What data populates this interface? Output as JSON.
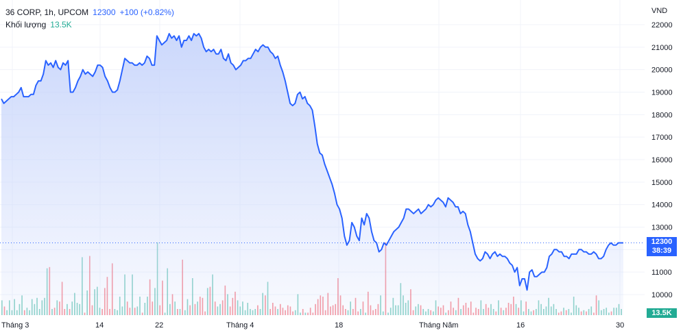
{
  "legend": {
    "symbol": "36 CORP, 1h, UPCOM",
    "last_price": "12300",
    "change": "+100 (+0.82%)",
    "volume_label": "Khối lượng",
    "volume_value": "13.5K"
  },
  "currency": "VND",
  "price_tag": {
    "price": "12300",
    "countdown": "38:39"
  },
  "volume_tag": "13.5K",
  "colors": {
    "line": "#2962ff",
    "area_top": "#c9d6fb",
    "volume_up": "#22ab94",
    "volume_down": "#f23645"
  },
  "chart_data": {
    "type": "area",
    "y_ticks": [
      "22000",
      "21000",
      "20000",
      "19000",
      "18000",
      "17000",
      "16000",
      "15000",
      "14000",
      "13000",
      "12000",
      "11000",
      "10000"
    ],
    "ylim": [
      9700,
      22400
    ],
    "x_ticks": [
      "Tháng 3",
      "14",
      "22",
      "Tháng 4",
      "18",
      "Tháng Năm",
      "16",
      "30"
    ],
    "last_value": 12300,
    "series": [
      {
        "values": [
          18700,
          18500,
          18600,
          18700,
          18800,
          18800,
          18900,
          19000,
          19200,
          18800,
          18800,
          18800,
          18900,
          18900,
          19300,
          19500,
          19500,
          19800,
          20400,
          20200,
          20300,
          20100,
          20400,
          20100,
          20000,
          20300,
          20200,
          20400,
          19000,
          19000,
          19200,
          19500,
          19700,
          20000,
          19800,
          19900,
          19800,
          19700,
          19900,
          20200,
          20200,
          20100,
          19700,
          19500,
          19200,
          19000,
          19000,
          19100,
          19500,
          20000,
          20500,
          20400,
          20300,
          20300,
          20200,
          20200,
          20300,
          20200,
          20300,
          20600,
          20500,
          20200,
          20200,
          21500,
          21300,
          21100,
          21200,
          21300,
          21600,
          21400,
          21500,
          21300,
          21500,
          21000,
          21300,
          21300,
          21500,
          21300,
          21600,
          21500,
          21600,
          21400,
          21000,
          20800,
          20900,
          20800,
          20900,
          20700,
          20700,
          20900,
          20500,
          20400,
          20700,
          20300,
          20200,
          20000,
          20100,
          20200,
          20400,
          20400,
          20500,
          20500,
          20700,
          20900,
          20800,
          21000,
          21100,
          21000,
          21000,
          20800,
          20700,
          20500,
          20600,
          20200,
          19900,
          19500,
          19000,
          18500,
          18400,
          18500,
          18900,
          19000,
          18700,
          18800,
          18500,
          18400,
          18200,
          17500,
          16700,
          16300,
          16200,
          15800,
          15500,
          15200,
          14900,
          14500,
          14000,
          13800,
          13400,
          12600,
          12200,
          12400,
          13200,
          13000,
          12600,
          12400,
          13400,
          13100,
          13600,
          13400,
          12800,
          12400,
          12300,
          11900,
          12000,
          12300,
          12200,
          12400,
          12600,
          12800,
          12900,
          13000,
          13200,
          13400,
          13800,
          13800,
          13700,
          13600,
          13700,
          13800,
          13600,
          13700,
          13800,
          14000,
          13900,
          14000,
          14200,
          14300,
          14200,
          14100,
          13900,
          14300,
          14200,
          14100,
          13900,
          13900,
          13600,
          13700,
          13600,
          13100,
          12800,
          12300,
          11800,
          11600,
          11500,
          11600,
          11900,
          11800,
          11600,
          11800,
          11900,
          11700,
          11800,
          11700,
          11700,
          11600,
          11400,
          11300,
          11000,
          11200,
          10400,
          10700,
          10700,
          10200,
          11000,
          11100,
          10800,
          10800,
          10900,
          11000,
          11000,
          11200,
          11700,
          11800,
          12000,
          12000,
          11900,
          11900,
          11700,
          11700,
          11600,
          11800,
          11800,
          11800,
          12000,
          12000,
          11900,
          11900,
          11800,
          11800,
          11900,
          11800,
          11600,
          11600,
          11700,
          12000,
          12200,
          12300,
          12200,
          12200,
          12300,
          12300,
          12300
        ]
      }
    ],
    "volume_series": [
      0.12,
      0.07,
      0.04,
      0.12,
      0.04,
      0.13,
      0.04,
      0.09,
      0.16,
      0.04,
      0.06,
      0.04,
      0.13,
      0.09,
      0.14,
      0.05,
      0.12,
      0.14,
      0.38,
      0.39,
      0.05,
      0.06,
      0.12,
      0.11,
      0.27,
      0.05,
      0.09,
      0.05,
      0.11,
      0.18,
      0.1,
      0.09,
      0.47,
      0.02,
      0.2,
      0.48,
      0.08,
      0.21,
      0.23,
      0.06,
      0.05,
      0.22,
      0.31,
      0.05,
      0.42,
      0.05,
      0.04,
      0.15,
      0.07,
      0.33,
      0.11,
      0.06,
      0.33,
      0.06,
      0.07,
      0.15,
      0.02,
      0.1,
      0.15,
      0.29,
      0.11,
      0.22,
      0.59,
      0.08,
      0.28,
      0.02,
      0.38,
      0.09,
      0.17,
      0.11,
      0.05,
      0.05,
      0.45,
      0.04,
      0.13,
      0.08,
      0.3,
      0.09,
      0.11,
      0.15,
      0.14,
      0.03,
      0.22,
      0.23,
      0.33,
      0.11,
      0.07,
      0.09,
      0.12,
      0.24,
      0.17,
      0.07,
      0.14,
      0.19,
      0.12,
      0.07,
      0.11,
      0.04,
      0.1,
      0.05,
      0.04,
      0.05,
      0.08,
      0.05,
      0.18,
      0.16,
      0.27,
      0.05,
      0.1,
      0.07,
      0.05,
      0.09,
      0.06,
      0.04,
      0.08,
      0.07,
      0.03,
      0.04,
      0.17,
      0.02,
      0.05,
      0.02,
      0.02,
      0.06,
      0.02,
      0.09,
      0.13,
      0.16,
      0.15,
      0.04,
      0.18,
      0.07,
      0.08,
      0.09,
      0.3,
      0.16,
      0.08,
      0.05,
      0.04,
      0.11,
      0.05,
      0.14,
      0.03,
      0.05,
      0.11,
      0.02,
      0.19,
      0.08,
      0.04,
      0.05,
      0.09,
      0.16,
      0.03,
      0.59,
      0.02,
      0.06,
      0.14,
      0.08,
      0.08,
      0.26,
      0.16,
      0.1,
      0.12,
      0.21,
      0.04,
      0.07,
      0.09,
      0.08,
      0.05,
      0.03,
      0.05,
      0.04,
      0.03,
      0.12,
      0.07,
      0.06,
      0.08,
      0.02,
      0.04,
      0.11,
      0.06,
      0.04,
      0.14,
      0.05,
      0.08,
      0.1,
      0.06,
      0.11,
      0.02,
      0.06,
      0.05,
      0.12,
      0.05,
      0.09,
      0.06,
      0.09,
      0.05,
      0.03,
      0.12,
      0.06,
      0.04,
      0.06,
      0.1,
      0.09,
      0.15,
      0.09,
      0.06,
      0.12,
      0.03,
      0.11,
      0.05,
      0.03,
      0.04,
      0.05,
      0.12,
      0.09,
      0.05,
      0.07,
      0.14,
      0.07,
      0.09,
      0.05,
      0.02,
      0.03,
      0.06,
      0.04,
      0.05,
      0.02,
      0.15,
      0.08,
      0.06,
      0.03,
      0.04,
      0.03,
      0.05,
      0.07,
      0.02,
      0.16,
      0.12,
      0.04,
      0.05,
      0.06,
      0.02,
      0.03,
      0.06,
      0.06,
      0.09,
      0.05
    ]
  }
}
